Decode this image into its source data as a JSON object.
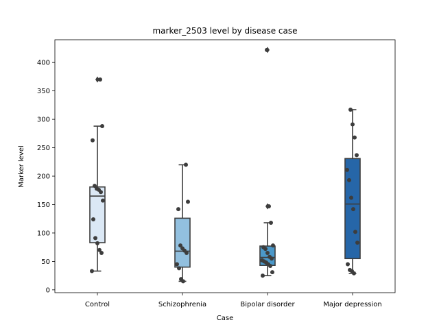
{
  "chart_data": {
    "type": "box",
    "title": "marker_2503 level by disease case",
    "xlabel": "Case",
    "ylabel": "Marker level",
    "ylim": [
      -5,
      440
    ],
    "yticks": [
      0,
      50,
      100,
      150,
      200,
      250,
      300,
      350,
      400
    ],
    "grid": false,
    "categories": [
      "Control",
      "Schizophrenia",
      "Bipolar disorder",
      "Major depression"
    ],
    "colors": [
      "#dbe8f5",
      "#92c0df",
      "#4b98c9",
      "#2666a8"
    ],
    "boxes": [
      {
        "q1": 83,
        "median": 165,
        "q3": 181,
        "whisker_low": 33,
        "whisker_high": 288,
        "outliers": [
          370
        ]
      },
      {
        "q1": 40,
        "median": 68,
        "q3": 126,
        "whisker_low": 15,
        "whisker_high": 220,
        "outliers": []
      },
      {
        "q1": 43,
        "median": 57,
        "q3": 77,
        "whisker_low": 25,
        "whisker_high": 118,
        "outliers": [
          147,
          422
        ]
      },
      {
        "q1": 55,
        "median": 151,
        "q3": 231,
        "whisker_low": 29,
        "whisker_high": 317,
        "outliers": []
      }
    ],
    "points": [
      [
        33,
        65,
        70,
        82,
        91,
        124,
        157,
        172,
        176,
        178,
        183,
        263,
        288,
        370
      ],
      [
        15,
        19,
        38,
        45,
        65,
        69,
        73,
        78,
        142,
        155,
        220
      ],
      [
        25,
        31,
        42,
        45,
        48,
        50,
        52,
        55,
        58,
        65,
        72,
        75,
        78,
        118,
        147,
        422
      ],
      [
        29,
        33,
        35,
        45,
        83,
        102,
        142,
        162,
        193,
        211,
        237,
        268,
        291,
        317
      ]
    ]
  }
}
